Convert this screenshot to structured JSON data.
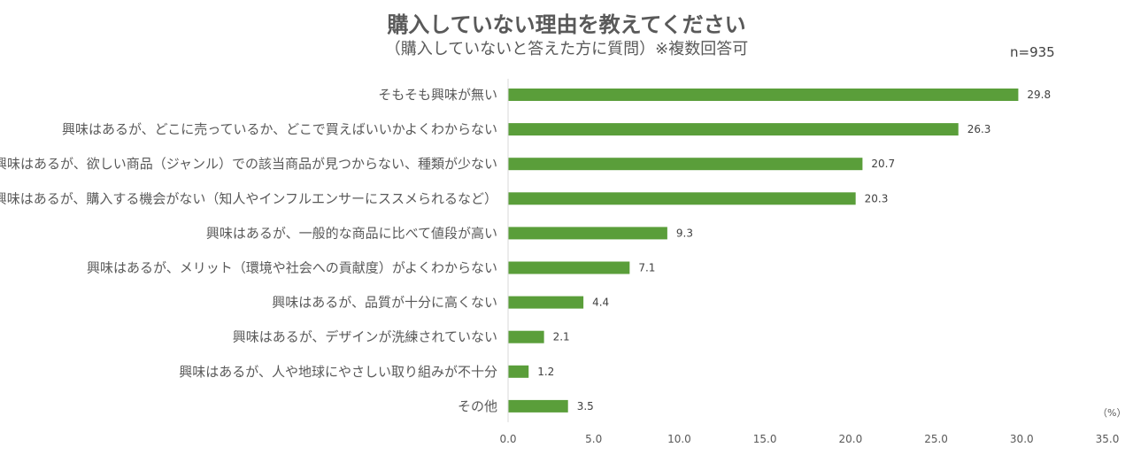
{
  "chart_data": {
    "type": "bar",
    "orientation": "horizontal",
    "title": "購入していない理由を教えてください",
    "subtitle": "（購入していないと答えた方に質問）※複数回答可",
    "sample_size": "n=935",
    "unit": "（%）",
    "categories": [
      "そもそも興味が無い",
      "興味はあるが、どこに売っているか、どこで買えばいいかよくわからない",
      "興味はあるが、欲しい商品（ジャンル）での該当商品が見つからない、種類が少ない",
      "興味はあるが、購入する機会がない（知人やインフルエンサーにススメられるなど）",
      "興味はあるが、一般的な商品に比べて値段が高い",
      "興味はあるが、メリット（環境や社会への貢献度）がよくわからない",
      "興味はあるが、品質が十分に高くない",
      "興味はあるが、デザインが洗練されていない",
      "興味はあるが、人や地球にやさしい取り組みが不十分",
      "その他"
    ],
    "values": [
      29.8,
      26.3,
      20.7,
      20.3,
      9.3,
      7.1,
      4.4,
      2.1,
      1.2,
      3.5
    ],
    "value_labels": [
      "29.8",
      "26.3",
      "20.7",
      "20.3",
      "9.3",
      "7.1",
      "4.4",
      "2.1",
      "1.2",
      "3.5"
    ],
    "xlim": [
      0,
      35
    ],
    "x_ticks": [
      "0.0",
      "5.0",
      "10.0",
      "15.0",
      "20.0",
      "25.0",
      "30.0",
      "35.0"
    ],
    "bar_color": "#5a9e3a",
    "grid": false,
    "legend": "none"
  }
}
